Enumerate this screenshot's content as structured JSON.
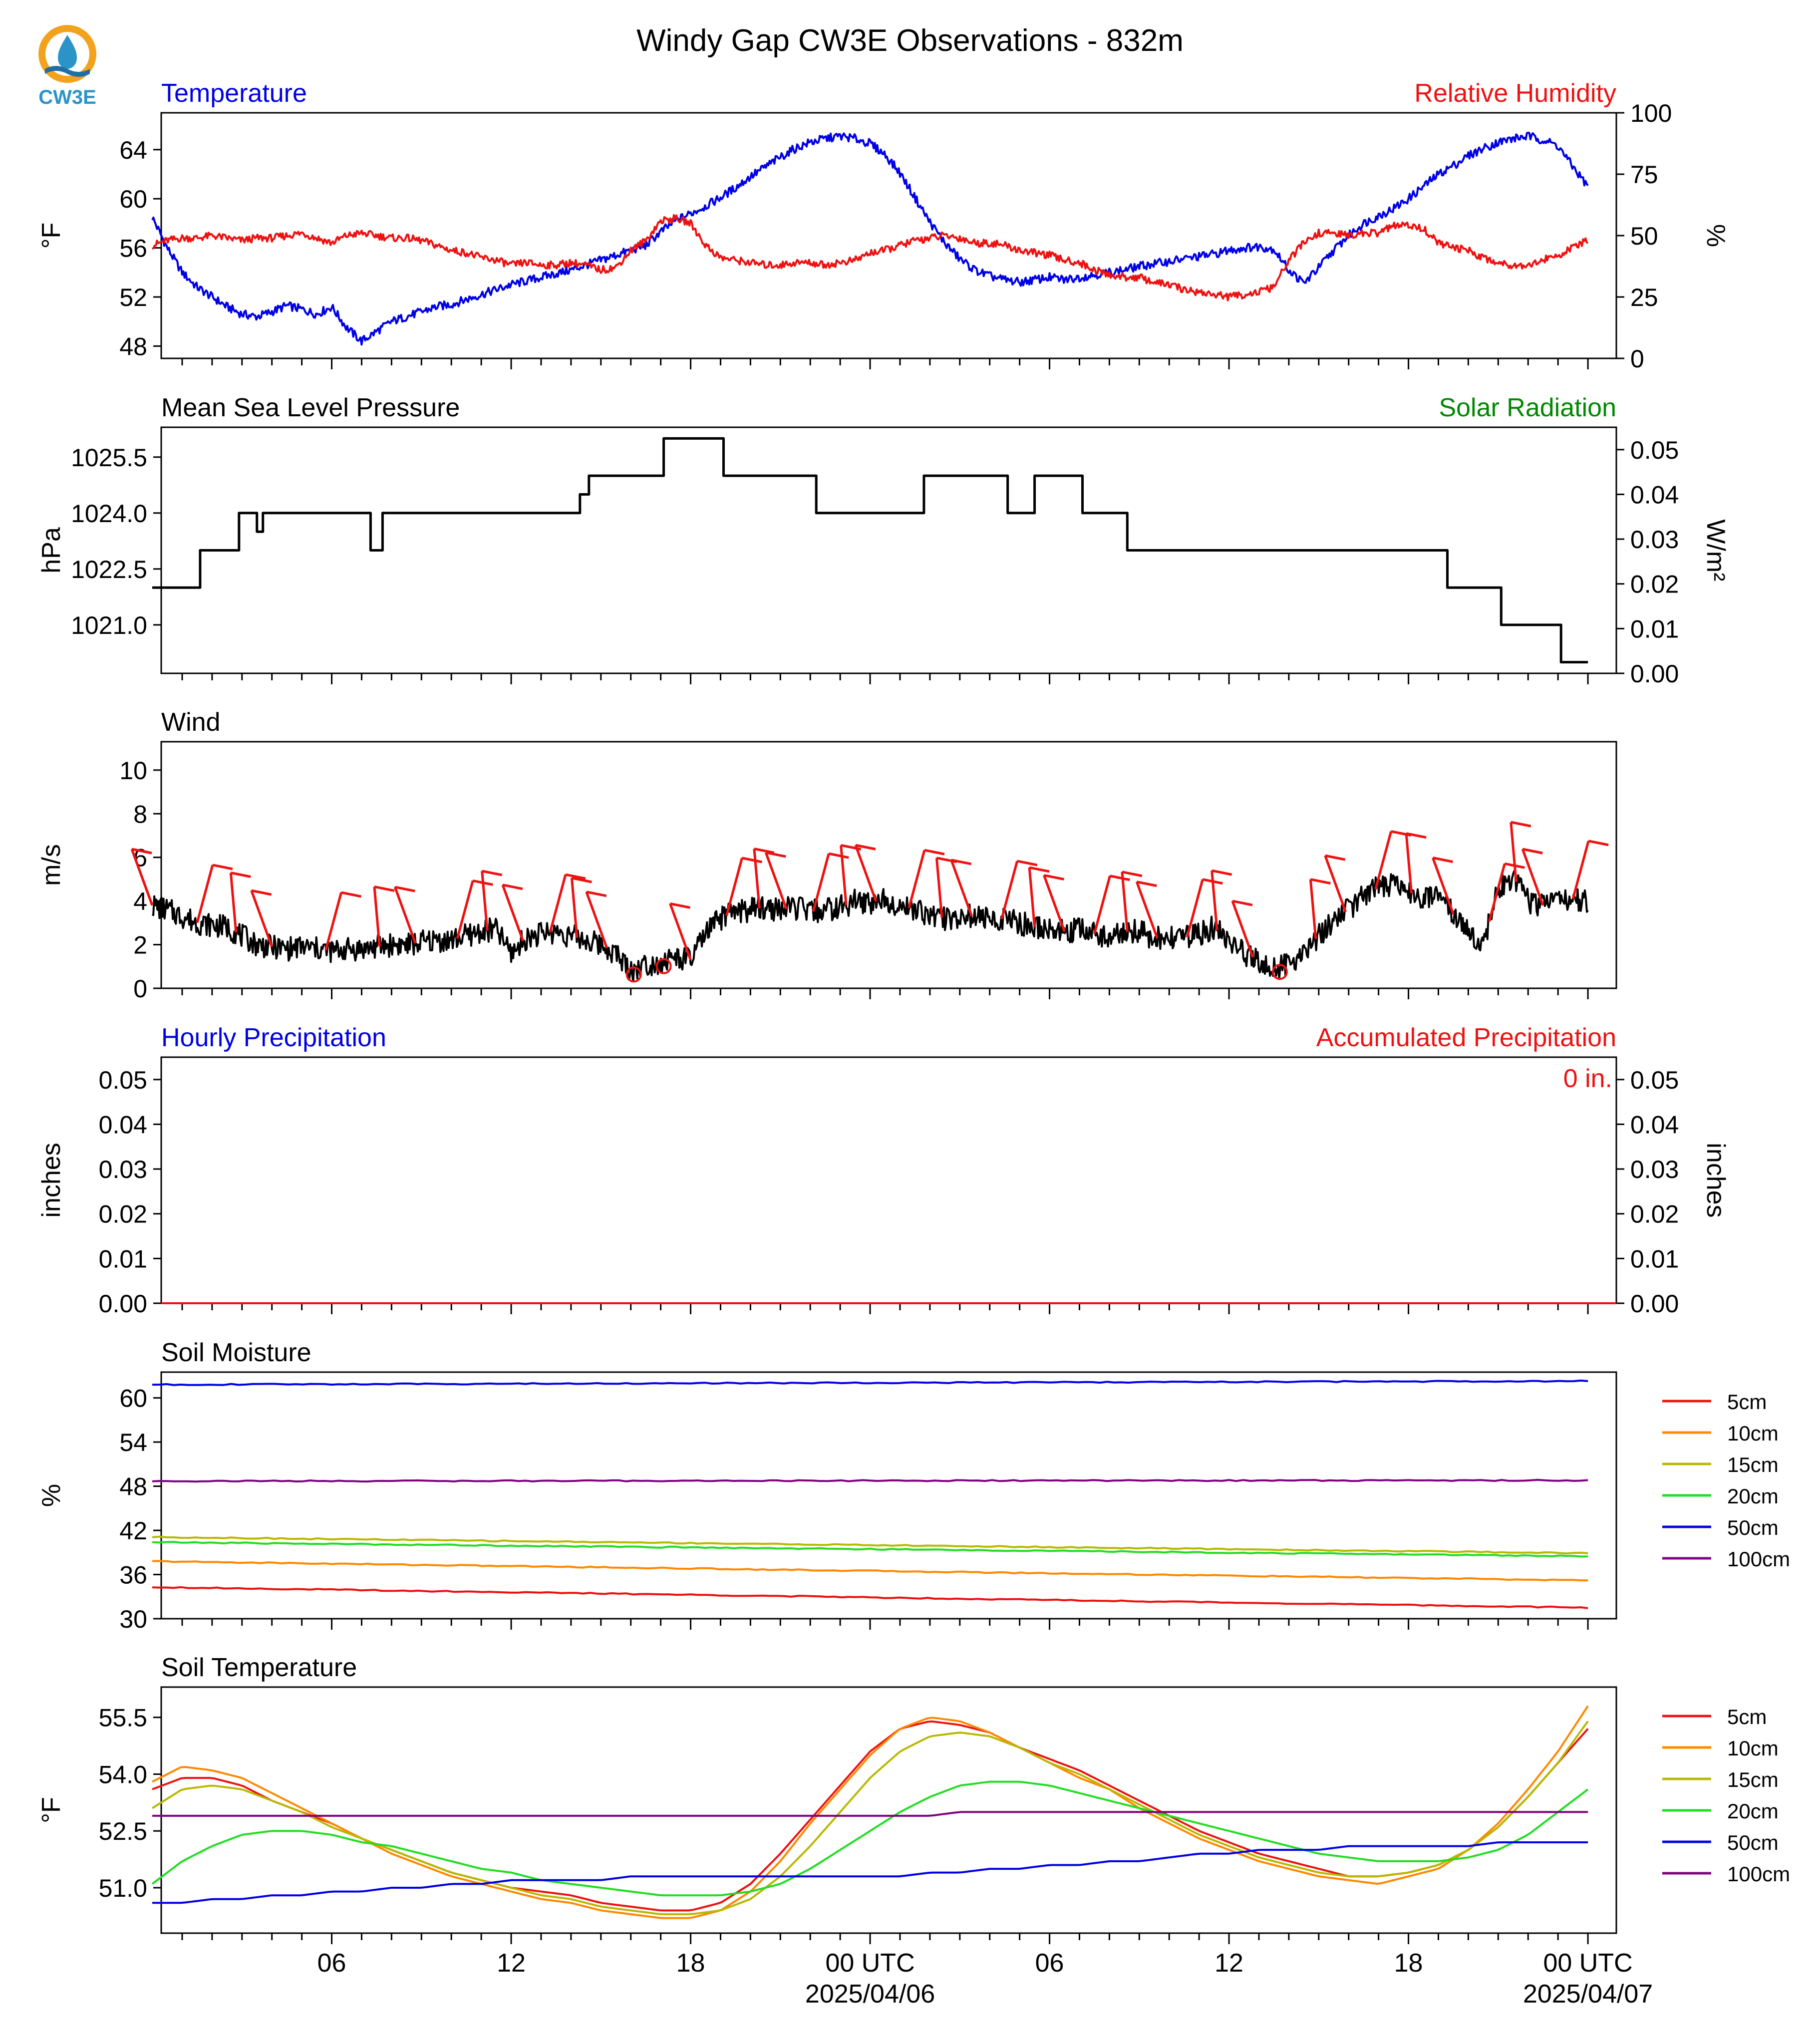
{
  "title": "Windy Gap CW3E Observations - 832m",
  "logo": {
    "text": "CW3E"
  },
  "colors": {
    "blue": "#0000e6",
    "red": "#ee1111",
    "green": "#008800",
    "black": "#000000"
  },
  "time_axis": {
    "tick_labels": [
      "06",
      "12",
      "18",
      "00 UTC",
      "06",
      "12",
      "18",
      "00 UTC"
    ],
    "date_labels": [
      "2025/04/06",
      "2025/04/07"
    ]
  },
  "chart_data": [
    {
      "type": "line",
      "title_left": "Temperature",
      "title_right": "Relative Humidity",
      "ylabel": "°F",
      "ylabel_right": "%",
      "ylim": [
        47,
        67
      ],
      "yticks": [
        48,
        52,
        56,
        60,
        64
      ],
      "ylim_right": [
        0,
        100
      ],
      "yticks_right": [
        0,
        25,
        50,
        75,
        100
      ],
      "x_hours": [
        0,
        0.5,
        1,
        1.5,
        2,
        2.5,
        3,
        3.5,
        4,
        4.5,
        5,
        5.5,
        6,
        6.5,
        7,
        7.5,
        8,
        8.5,
        9,
        9.5,
        10,
        10.5,
        11,
        11.5,
        12,
        12.5,
        13,
        13.5,
        14,
        14.5,
        15,
        15.5,
        16,
        16.5,
        17,
        17.5,
        18,
        18.5,
        19,
        19.5,
        20,
        20.5,
        21,
        21.5,
        22,
        22.5,
        23,
        23.5,
        24,
        24.5,
        25,
        25.5,
        26,
        26.5,
        27,
        27.5,
        28,
        28.5,
        29,
        29.5,
        30,
        30.5,
        31,
        31.5,
        32,
        32.5,
        33,
        33.5,
        34,
        34.5,
        35,
        35.5,
        36,
        36.5,
        37,
        37.5,
        38,
        38.5,
        39,
        39.5,
        40,
        40.5,
        41,
        41.5,
        42,
        42.5,
        43,
        43.5,
        44,
        44.5,
        45,
        45.5,
        46,
        46.5,
        47,
        47.5,
        48
      ],
      "series": [
        {
          "name": "Temperature",
          "color": "#0000e6",
          "axis": "left",
          "values": [
            58.5,
            56,
            54,
            52.8,
            52,
            51.2,
            50.6,
            50.4,
            50.8,
            51.3,
            51,
            50.6,
            51.2,
            49.5,
            48.4,
            49.2,
            50,
            50.4,
            50.8,
            51.2,
            51.4,
            51.8,
            52.2,
            52.6,
            53,
            53.3,
            53.6,
            53.9,
            54.2,
            54.6,
            55,
            55.4,
            55.8,
            56.2,
            57.3,
            58.2,
            58.8,
            59.4,
            60.1,
            60.9,
            61.8,
            62.6,
            63.4,
            64.1,
            64.6,
            64.9,
            65.1,
            64.9,
            64.5,
            63.6,
            62.1,
            60.1,
            58.1,
            56.4,
            55.1,
            54.2,
            53.7,
            53.4,
            53.2,
            53.4,
            53.6,
            53.4,
            53.6,
            53.8,
            54,
            54.2,
            54.5,
            54.7,
            54.9,
            55.1,
            55.3,
            55.5,
            55.8,
            56,
            56.1,
            55.9,
            54.2,
            53.1,
            54.4,
            55.8,
            57,
            58,
            58.6,
            59.2,
            60,
            61,
            62,
            62.7,
            63.5,
            64.1,
            64.6,
            64.9,
            65.1,
            64.8,
            64.3,
            62.6,
            61
          ]
        },
        {
          "name": "Relative Humidity",
          "color": "#ee1111",
          "axis": "right",
          "values": [
            46,
            48,
            49,
            49,
            50,
            49,
            48,
            49,
            49,
            50,
            51,
            49,
            47,
            50,
            51,
            50,
            49,
            49,
            48,
            46,
            44,
            43,
            41,
            40,
            38,
            39,
            38,
            38,
            39,
            38,
            36,
            37,
            44,
            48,
            56,
            57,
            55,
            46,
            41,
            40,
            39,
            38,
            38,
            39,
            39,
            38,
            39,
            40,
            43,
            44,
            46,
            48,
            49,
            50,
            49,
            47,
            47,
            46,
            44,
            43,
            42,
            40,
            39,
            36,
            34,
            33,
            33,
            31,
            30,
            28,
            27,
            26,
            25,
            26,
            27,
            29,
            40,
            47,
            51,
            51,
            50,
            51,
            51,
            54,
            54,
            53,
            47,
            45,
            44,
            41,
            39,
            38,
            38,
            40,
            42,
            45,
            48
          ]
        }
      ]
    },
    {
      "type": "line",
      "title_left": "Mean Sea Level Pressure",
      "title_right": "Solar Radiation",
      "ylabel": "hPa",
      "ylabel_right": "W/m²",
      "ylim": [
        1019.7,
        1026.3
      ],
      "yticks": [
        1021.0,
        1022.5,
        1024.0,
        1025.5
      ],
      "ylim_right": [
        0,
        0.055
      ],
      "yticks_right": [
        0.0,
        0.01,
        0.02,
        0.03,
        0.04,
        0.05
      ],
      "step_points": [
        [
          0,
          1022
        ],
        [
          1.6,
          1022
        ],
        [
          1.6,
          1023
        ],
        [
          2.9,
          1023
        ],
        [
          2.9,
          1024
        ],
        [
          3.5,
          1024
        ],
        [
          3.5,
          1023.5
        ],
        [
          3.7,
          1023.5
        ],
        [
          3.7,
          1024
        ],
        [
          7.3,
          1024
        ],
        [
          7.3,
          1023
        ],
        [
          7.7,
          1023
        ],
        [
          7.7,
          1024
        ],
        [
          14.3,
          1024
        ],
        [
          14.3,
          1024.5
        ],
        [
          14.6,
          1024.5
        ],
        [
          14.6,
          1025
        ],
        [
          17.1,
          1025
        ],
        [
          17.1,
          1026
        ],
        [
          19.1,
          1026
        ],
        [
          19.1,
          1025
        ],
        [
          22.2,
          1025
        ],
        [
          22.2,
          1024
        ],
        [
          25.8,
          1024
        ],
        [
          25.8,
          1025
        ],
        [
          28.6,
          1025
        ],
        [
          28.6,
          1024
        ],
        [
          29.5,
          1024
        ],
        [
          29.5,
          1025
        ],
        [
          31.1,
          1025
        ],
        [
          31.1,
          1024
        ],
        [
          32.6,
          1024
        ],
        [
          32.6,
          1023
        ],
        [
          43.3,
          1023
        ],
        [
          43.3,
          1022
        ],
        [
          45.1,
          1022
        ],
        [
          45.1,
          1021
        ],
        [
          47.1,
          1021
        ],
        [
          47.1,
          1020
        ],
        [
          48,
          1020
        ]
      ]
    },
    {
      "type": "line",
      "title_left": "Wind",
      "ylabel": "m/s",
      "ylim": [
        0,
        11.3
      ],
      "yticks": [
        0,
        2,
        4,
        6,
        8,
        10
      ],
      "series": [
        {
          "name": "Wind speed",
          "color": "#000000",
          "values": [
            3.8,
            3.6,
            3.3,
            3,
            2.9,
            2.8,
            2.4,
            2,
            1.9,
            1.8,
            1.9,
            1.8,
            1.7,
            1.8,
            1.8,
            1.9,
            2,
            2,
            2.1,
            2.2,
            2.2,
            2.4,
            2.6,
            2.7,
            1.6,
            2.3,
            2.5,
            2.6,
            2.4,
            2.2,
            2,
            1.6,
            0.8,
            1.1,
            1.2,
            1.4,
            1.3,
            2.5,
            3.2,
            3.5,
            3.6,
            3.7,
            3.6,
            3.7,
            3.5,
            3.6,
            3.7,
            4,
            3.9,
            4.1,
            3.8,
            3.6,
            3.4,
            3.2,
            3.3,
            3.3,
            3.1,
            3.2,
            3,
            2.8,
            2.7,
            2.6,
            2.7,
            2.5,
            2.4,
            2.6,
            2.6,
            2.3,
            2.3,
            2.3,
            2.5,
            2.8,
            2.1,
            1.6,
            1.3,
            0.9,
            1.1,
            1.7,
            2.4,
            3.1,
            3.6,
            4.3,
            4.6,
            4.7,
            4.4,
            4.2,
            4.1,
            3.4,
            2.6,
            2.1,
            4.5,
            5.1,
            4,
            3.8,
            4.2,
            4.1,
            3.9
          ]
        }
      ],
      "barbs_hours": [
        0,
        1.5,
        2.8,
        4.0,
        5.8,
        7.6,
        8.8,
        10.2,
        11.2,
        12.4,
        13.3,
        14.2,
        15.2,
        16.1,
        17.1,
        18.0,
        19.2,
        20.3,
        21.2,
        22.1,
        23.2,
        24.2,
        25.3,
        26.4,
        27.4,
        28.4,
        29.5,
        30.5,
        31.5,
        32.6,
        33.6,
        34.6,
        35.6,
        36.8,
        37.7,
        38.9,
        39.9,
        40.9,
        42.1,
        43.5,
        44.7,
        45.6,
        46.5,
        47.5
      ]
    },
    {
      "type": "line",
      "title_left": "Hourly Precipitation",
      "title_right": "Accumulated Precipitation",
      "annotation": "0 in.",
      "ylabel": "inches",
      "ylabel_right": "inches",
      "ylim": [
        0,
        0.055
      ],
      "yticks": [
        0.0,
        0.01,
        0.02,
        0.03,
        0.04,
        0.05
      ],
      "yticks_right": [
        0.0,
        0.01,
        0.02,
        0.03,
        0.04,
        0.05
      ],
      "hourly_values": [
        0
      ],
      "accumulated_values": [
        0
      ]
    },
    {
      "type": "line",
      "title_left": "Soil Moisture",
      "ylabel": "%",
      "ylim": [
        30,
        63.5
      ],
      "yticks": [
        30,
        36,
        42,
        48,
        54,
        60
      ],
      "legend_position": "right",
      "series": [
        {
          "name": "5cm",
          "color": "#ee1111",
          "start": 34.3,
          "end": 31.5
        },
        {
          "name": "10cm",
          "color": "#ff8800",
          "start": 37.8,
          "end": 35.2
        },
        {
          "name": "15cm",
          "color": "#b8b800",
          "start": 41.1,
          "end": 38.9
        },
        {
          "name": "20cm",
          "color": "#22dd22",
          "start": 40.4,
          "end": 38.5
        },
        {
          "name": "50cm",
          "color": "#0000e6",
          "start": 61.8,
          "end": 62.3
        },
        {
          "name": "100cm",
          "color": "#800080",
          "start": 48.7,
          "end": 48.8
        }
      ]
    },
    {
      "type": "line",
      "title_left": "Soil Temperature",
      "ylabel": "°F",
      "ylim": [
        49.8,
        56.3
      ],
      "yticks": [
        51.0,
        52.5,
        54.0,
        55.5
      ],
      "legend_position": "right",
      "x_hours": [
        0,
        1,
        2,
        3,
        4,
        5,
        6,
        7,
        8,
        9,
        10,
        11,
        12,
        13,
        14,
        15,
        16,
        17,
        18,
        19,
        20,
        21,
        22,
        23,
        24,
        25,
        26,
        27,
        28,
        29,
        30,
        31,
        32,
        33,
        34,
        35,
        36,
        37,
        38,
        39,
        40,
        41,
        42,
        43,
        44,
        45,
        46,
        47,
        48
      ],
      "series": [
        {
          "name": "5cm",
          "color": "#ee1111",
          "values": [
            53.6,
            53.9,
            53.9,
            53.7,
            53.3,
            53,
            52.7,
            52.3,
            52,
            51.7,
            51.4,
            51.2,
            51,
            50.9,
            50.8,
            50.6,
            50.5,
            50.4,
            50.4,
            50.6,
            51.1,
            51.9,
            52.8,
            53.7,
            54.6,
            55.2,
            55.4,
            55.3,
            55.1,
            54.7,
            54.4,
            54.1,
            53.7,
            53.3,
            52.9,
            52.5,
            52.2,
            51.9,
            51.7,
            51.5,
            51.3,
            51.3,
            51.4,
            51.6,
            52,
            52.6,
            53.4,
            54.3,
            55.2
          ]
        },
        {
          "name": "10cm",
          "color": "#ff8800",
          "values": [
            53.8,
            54.2,
            54.1,
            53.9,
            53.5,
            53.1,
            52.7,
            52.3,
            51.9,
            51.6,
            51.3,
            51.1,
            50.9,
            50.7,
            50.6,
            50.4,
            50.3,
            50.2,
            50.2,
            50.4,
            50.9,
            51.7,
            52.7,
            53.6,
            54.5,
            55.2,
            55.5,
            55.4,
            55.1,
            54.7,
            54.3,
            53.9,
            53.6,
            53.1,
            52.7,
            52.3,
            52,
            51.7,
            51.5,
            51.3,
            51.2,
            51.1,
            51.3,
            51.5,
            52,
            52.7,
            53.6,
            54.6,
            55.8
          ]
        },
        {
          "name": "15cm",
          "color": "#b8b800",
          "values": [
            53.1,
            53.6,
            53.7,
            53.6,
            53.3,
            53,
            52.6,
            52.3,
            52,
            51.7,
            51.4,
            51.2,
            51,
            50.8,
            50.7,
            50.5,
            50.4,
            50.3,
            50.3,
            50.4,
            50.7,
            51.3,
            52.1,
            53,
            53.9,
            54.6,
            55,
            55.1,
            55,
            54.7,
            54.3,
            54,
            53.6,
            53.2,
            52.8,
            52.4,
            52.1,
            51.8,
            51.6,
            51.4,
            51.3,
            51.3,
            51.4,
            51.6,
            52,
            52.6,
            53.4,
            54.3,
            55.4
          ]
        },
        {
          "name": "20cm",
          "color": "#22dd22",
          "values": [
            51.1,
            51.7,
            52.1,
            52.4,
            52.5,
            52.5,
            52.4,
            52.2,
            52.1,
            51.9,
            51.7,
            51.5,
            51.4,
            51.2,
            51.1,
            51,
            50.9,
            50.8,
            50.8,
            50.8,
            50.9,
            51.1,
            51.5,
            52,
            52.5,
            53,
            53.4,
            53.7,
            53.8,
            53.8,
            53.7,
            53.5,
            53.3,
            53.1,
            52.9,
            52.7,
            52.5,
            52.3,
            52.1,
            51.9,
            51.8,
            51.7,
            51.7,
            51.7,
            51.8,
            52,
            52.4,
            53,
            53.6
          ]
        },
        {
          "name": "50cm",
          "color": "#0000e6",
          "values": [
            50.6,
            50.6,
            50.7,
            50.7,
            50.8,
            50.8,
            50.9,
            50.9,
            51,
            51,
            51.1,
            51.1,
            51.2,
            51.2,
            51.2,
            51.2,
            51.3,
            51.3,
            51.3,
            51.3,
            51.3,
            51.3,
            51.3,
            51.3,
            51.3,
            51.3,
            51.4,
            51.4,
            51.5,
            51.5,
            51.6,
            51.6,
            51.7,
            51.7,
            51.8,
            51.9,
            51.9,
            52,
            52,
            52,
            52.1,
            52.1,
            52.1,
            52.1,
            52.1,
            52.2,
            52.2,
            52.2,
            52.2
          ]
        },
        {
          "name": "100cm",
          "color": "#800080",
          "values": [
            52.9,
            52.9,
            52.9,
            52.9,
            52.9,
            52.9,
            52.9,
            52.9,
            52.9,
            52.9,
            52.9,
            52.9,
            52.9,
            52.9,
            52.9,
            52.9,
            52.9,
            52.9,
            52.9,
            52.9,
            52.9,
            52.9,
            52.9,
            52.9,
            52.9,
            52.9,
            52.9,
            53,
            53,
            53,
            53,
            53,
            53,
            53,
            53,
            53,
            53,
            53,
            53,
            53,
            53,
            53,
            53,
            53,
            53,
            53,
            53,
            53,
            53
          ]
        }
      ]
    }
  ]
}
